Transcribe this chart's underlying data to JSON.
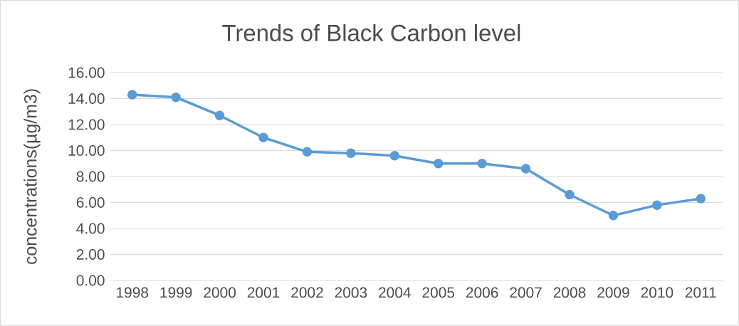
{
  "chart_data": {
    "type": "line",
    "title": "Trends of Black Carbon level",
    "ylabel": "concentrations(µg/m3)",
    "categories": [
      "1998",
      "1999",
      "2000",
      "2001",
      "2002",
      "2003",
      "2004",
      "2005",
      "2006",
      "2007",
      "2008",
      "2009",
      "2010",
      "2011"
    ],
    "series": [
      {
        "color": "#5b9bd5",
        "values": [
          14.3,
          14.1,
          12.7,
          11.0,
          9.9,
          9.8,
          9.6,
          9.0,
          9.0,
          8.6,
          6.6,
          5.0,
          5.8,
          6.3
        ]
      }
    ],
    "ylim": [
      0,
      16
    ],
    "yticks": [
      {
        "value": 0,
        "label": "0.00"
      },
      {
        "value": 2,
        "label": "2.00"
      },
      {
        "value": 4,
        "label": "4.00"
      },
      {
        "value": 6,
        "label": "6.00"
      },
      {
        "value": 8,
        "label": "8.00"
      },
      {
        "value": 10,
        "label": "10.00"
      },
      {
        "value": 12,
        "label": "12.00"
      },
      {
        "value": 14,
        "label": "14.00"
      },
      {
        "value": 16,
        "label": "16.00"
      }
    ],
    "grid": "y",
    "marker": "circle",
    "line_style": "solid"
  }
}
